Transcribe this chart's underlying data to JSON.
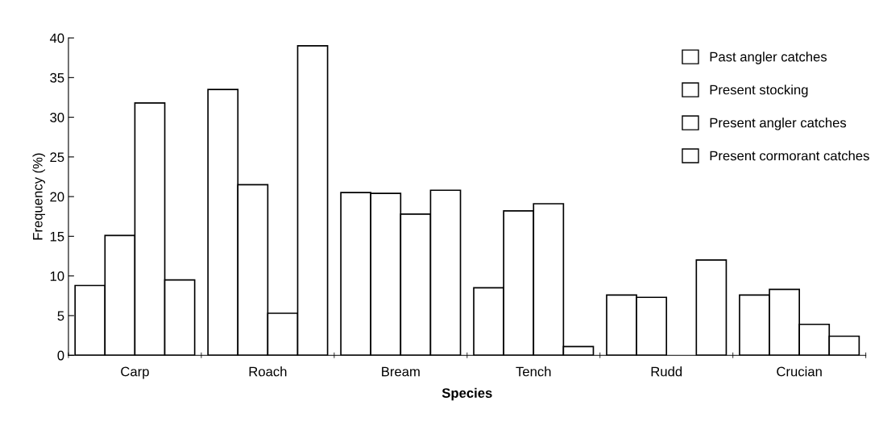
{
  "chart_data": {
    "type": "bar",
    "xlabel": "Species",
    "ylabel": "Frequency (%)",
    "categories": [
      "Carp",
      "Roach",
      "Bream",
      "Tench",
      "Rudd",
      "Crucian"
    ],
    "series": [
      {
        "name": "Past angler catches",
        "color": "#ffffff",
        "values": [
          8.8,
          33.5,
          20.5,
          8.5,
          7.6,
          7.6
        ]
      },
      {
        "name": "Present stocking",
        "color": "#ffffff",
        "values": [
          15.1,
          21.5,
          20.4,
          18.2,
          7.3,
          8.3
        ]
      },
      {
        "name": "Present angler catches",
        "color": "#ffffff",
        "values": [
          31.8,
          5.3,
          17.8,
          19.1,
          null,
          3.9
        ]
      },
      {
        "name": "Present cormorant catches",
        "color": "#ffffff",
        "values": [
          9.5,
          39.0,
          20.8,
          1.1,
          12.0,
          2.4
        ]
      }
    ],
    "ylim": [
      0,
      40
    ],
    "yticks": [
      0,
      5,
      10,
      15,
      20,
      25,
      30,
      35,
      40
    ],
    "grid": false,
    "legend": "top right"
  }
}
